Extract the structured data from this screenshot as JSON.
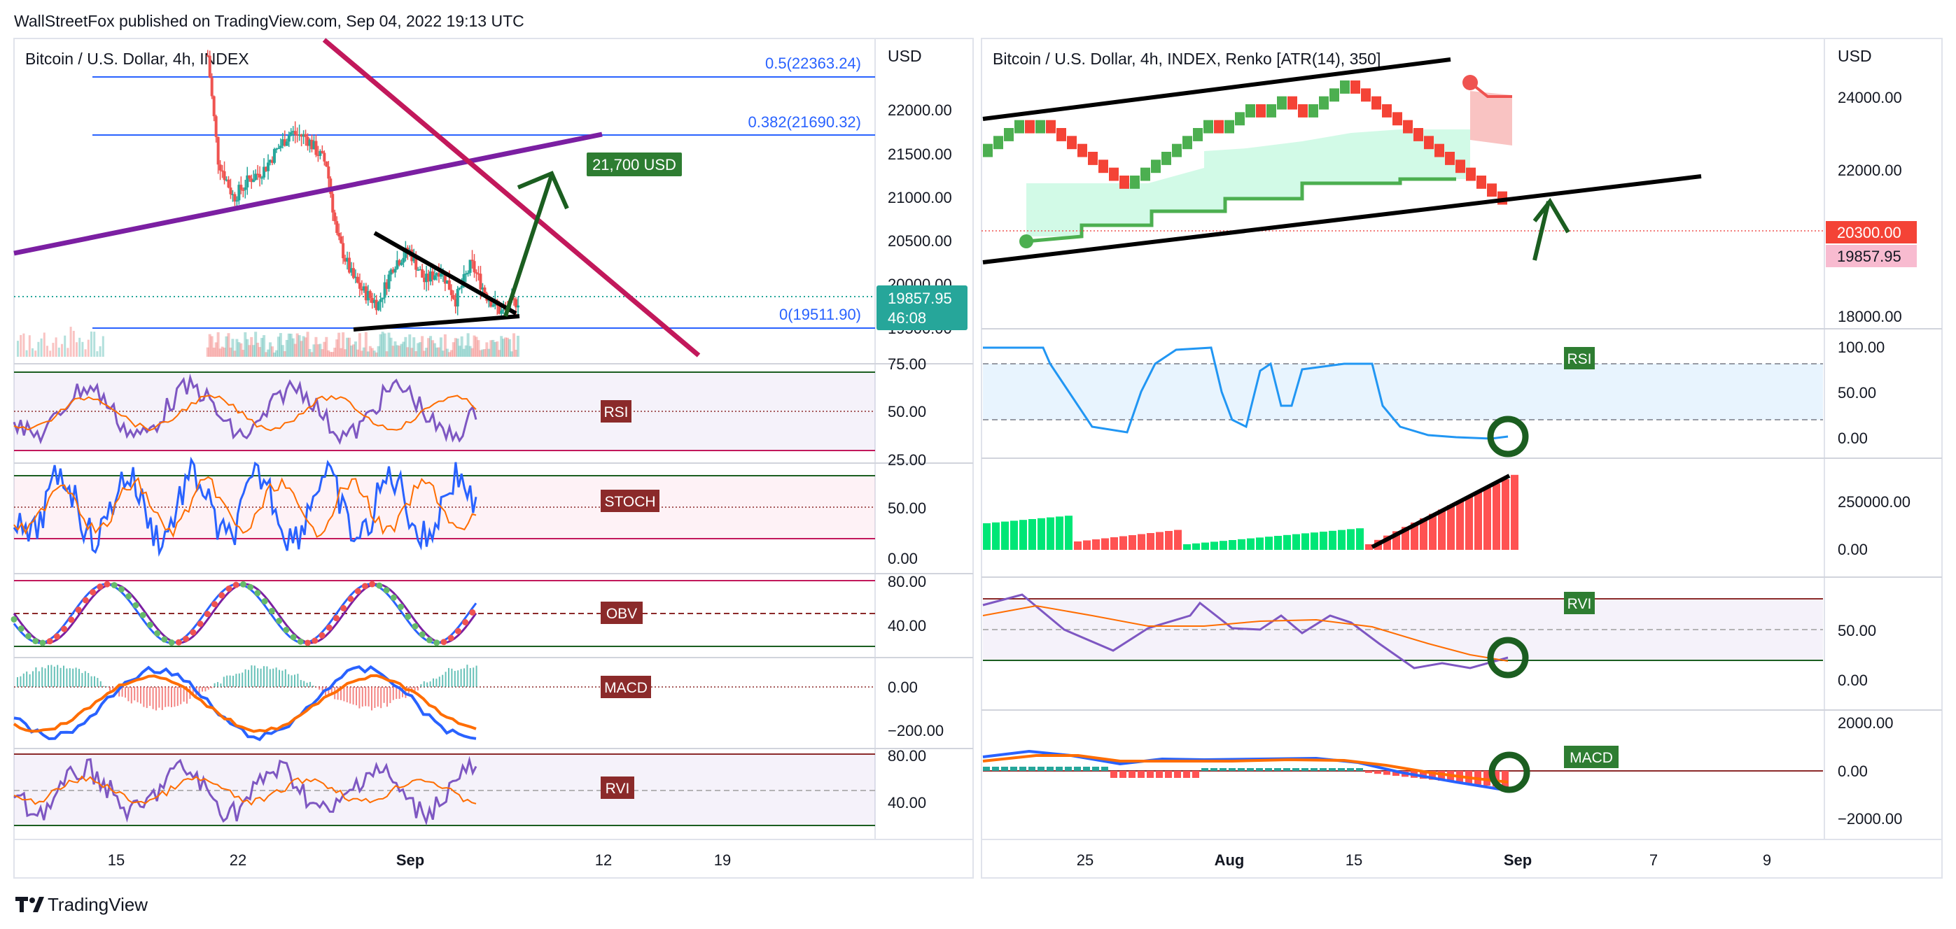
{
  "header": {
    "publisher": "WallStreetFox published on TradingView.com, Sep 04, 2022 19:13 UTC"
  },
  "footer": {
    "brand": "TradingView"
  },
  "left": {
    "title": "Bitcoin / U.S. Dollar, 4h, INDEX",
    "currency": "USD",
    "price_ticks": [
      "22000.00",
      "21500.00",
      "21000.00",
      "20500.00",
      "20000.00",
      "19500.00"
    ],
    "last_price": "19857.95",
    "countdown": "46:08",
    "fib": [
      {
        "label": "0.5(22363.24)",
        "value": 22363.24
      },
      {
        "label": "0.382(21690.32)",
        "value": 21690.32
      },
      {
        "label": "0(19511.90)",
        "value": 19511.9
      }
    ],
    "target_label": "21,700 USD",
    "x_ticks": [
      "15",
      "22",
      "Sep",
      "12",
      "19"
    ],
    "panes": [
      {
        "name": "RSI",
        "ticks": [
          "75.00",
          "50.00",
          "25.00"
        ]
      },
      {
        "name": "STOCH",
        "ticks": [
          "50.00",
          "0.00"
        ]
      },
      {
        "name": "OBV",
        "ticks": [
          "80.00",
          "40.00"
        ]
      },
      {
        "name": "MACD",
        "ticks": [
          "0.00",
          "−200.00"
        ]
      },
      {
        "name": "RVI",
        "ticks": [
          "80.00",
          "40.00"
        ]
      }
    ]
  },
  "right": {
    "title": "Bitcoin / U.S. Dollar, 4h, INDEX, Renko [ATR(14), 350]",
    "currency": "USD",
    "price_ticks": [
      "24000.00",
      "22000.00",
      "18000.00"
    ],
    "price_label_red": "20300.00",
    "price_label_pink": "19857.95",
    "x_ticks": [
      "25",
      "Aug",
      "15",
      "Sep",
      "7",
      "9"
    ],
    "panes": [
      {
        "name": "RSI",
        "ticks": [
          "100.00",
          "50.00",
          "0.00"
        ]
      },
      {
        "name": "",
        "ticks": [
          "250000.00",
          "0.00"
        ]
      },
      {
        "name": "RVI",
        "ticks": [
          "50.00",
          "0.00"
        ]
      },
      {
        "name": "MACD",
        "ticks": [
          "2000.00",
          "0.00",
          "−2000.00"
        ]
      }
    ]
  },
  "colors": {
    "up": "#26a69a",
    "down": "#ef5350",
    "renko_up": "#4caf50",
    "renko_down": "#f44336",
    "fib": "#2962ff",
    "purple_line": "#7b1fa2",
    "magenta_line": "#c2185b",
    "arrow": "#1b5e20",
    "rsi_line": "#7e57c2",
    "blue_line": "#2196f3",
    "orange_line": "#ff6d00",
    "badge_dark_red": "#8b2a2a",
    "badge_green": "#2e7d32"
  },
  "chart_data": [
    {
      "type": "candlestick",
      "title": "Bitcoin / U.S. Dollar, 4h, INDEX",
      "x_ticks": [
        "15",
        "22",
        "Sep",
        "12",
        "19"
      ],
      "y_ticks": [
        22000,
        21500,
        21000,
        20500,
        20000,
        19500
      ],
      "ylim": [
        19300,
        22700
      ],
      "fib_levels": [
        {
          "level": "0.5",
          "value": 22363.24
        },
        {
          "level": "0.382",
          "value": 21690.32
        },
        {
          "level": "0",
          "value": 19511.9
        }
      ],
      "last_price": 19857.95,
      "annotation": "21,700 USD",
      "close_path": [
        {
          "x": 0.0,
          "y": 22550
        },
        {
          "x": 0.02,
          "y": 21400
        },
        {
          "x": 0.05,
          "y": 20980
        },
        {
          "x": 0.08,
          "y": 21180
        },
        {
          "x": 0.11,
          "y": 21300
        },
        {
          "x": 0.13,
          "y": 21480
        },
        {
          "x": 0.16,
          "y": 21700
        },
        {
          "x": 0.19,
          "y": 21650
        },
        {
          "x": 0.21,
          "y": 21500
        },
        {
          "x": 0.23,
          "y": 21350
        },
        {
          "x": 0.25,
          "y": 20550
        },
        {
          "x": 0.28,
          "y": 20100
        },
        {
          "x": 0.3,
          "y": 19950
        },
        {
          "x": 0.33,
          "y": 19800
        },
        {
          "x": 0.36,
          "y": 20250
        },
        {
          "x": 0.39,
          "y": 20400
        },
        {
          "x": 0.42,
          "y": 20050
        },
        {
          "x": 0.45,
          "y": 20200
        },
        {
          "x": 0.48,
          "y": 19850
        },
        {
          "x": 0.51,
          "y": 20250
        },
        {
          "x": 0.54,
          "y": 19900
        },
        {
          "x": 0.57,
          "y": 19700
        },
        {
          "x": 0.6,
          "y": 19850
        }
      ]
    },
    {
      "type": "renko",
      "title": "Bitcoin / U.S. Dollar, 4h, INDEX, Renko [ATR(14), 350]",
      "brick_size": 350,
      "x_ticks": [
        "25",
        "Aug",
        "15",
        "Sep",
        "7",
        "9"
      ],
      "y_ticks": [
        24000,
        22000,
        18000
      ],
      "ylim": [
        17800,
        25400
      ],
      "last_price": 19857.95,
      "marker_price": 20300.0,
      "brick_path": [
        {
          "x": 0.0,
          "y": 22350
        },
        {
          "x": 0.04,
          "y": 23000
        },
        {
          "x": 0.08,
          "y": 23300
        },
        {
          "x": 0.12,
          "y": 22800
        },
        {
          "x": 0.16,
          "y": 22150
        },
        {
          "x": 0.19,
          "y": 21150
        },
        {
          "x": 0.24,
          "y": 22100
        },
        {
          "x": 0.28,
          "y": 23200
        },
        {
          "x": 0.32,
          "y": 24150
        },
        {
          "x": 0.34,
          "y": 23700
        },
        {
          "x": 0.37,
          "y": 22850
        },
        {
          "x": 0.4,
          "y": 23850
        },
        {
          "x": 0.43,
          "y": 23150
        },
        {
          "x": 0.46,
          "y": 23850
        },
        {
          "x": 0.49,
          "y": 23500
        },
        {
          "x": 0.53,
          "y": 24100
        },
        {
          "x": 0.56,
          "y": 24400
        },
        {
          "x": 0.6,
          "y": 23200
        },
        {
          "x": 0.66,
          "y": 22200
        },
        {
          "x": 0.72,
          "y": 21400
        },
        {
          "x": 0.77,
          "y": 20350
        },
        {
          "x": 0.8,
          "y": 19850
        }
      ]
    }
  ]
}
